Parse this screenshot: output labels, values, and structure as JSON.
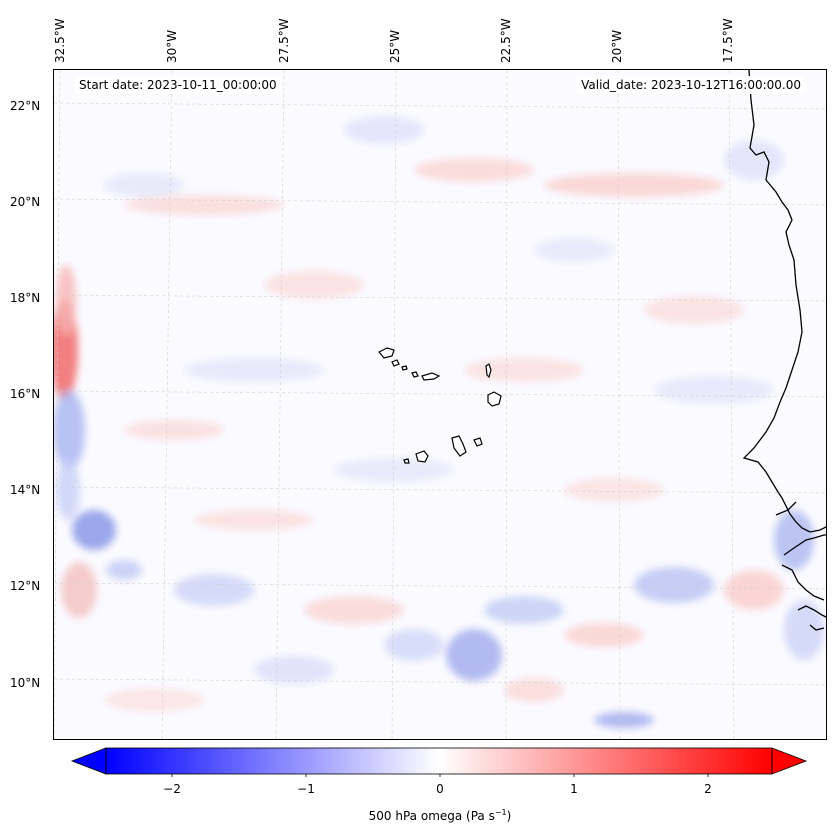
{
  "map": {
    "start_date": "Start date: 2023-10-11_00:00:00",
    "valid_date": "Valid_date: 2023-10-12T16:00:00.00",
    "lon_labels": [
      "32.5°W",
      "30°W",
      "27.5°W",
      "25°W",
      "22.5°W",
      "20°W",
      "17.5°W"
    ],
    "lat_labels": [
      "22°N",
      "20°N",
      "18°N",
      "16°N",
      "14°N",
      "12°N",
      "10°N"
    ],
    "field_name": "500 hPa omega",
    "colors": {
      "negative": "#0000ff",
      "zero": "#ffffff",
      "positive": "#ff0000",
      "coastline": "#000000",
      "grid": "#cccccc"
    }
  },
  "colorbar": {
    "ticks": [
      "−2",
      "−1",
      "0",
      "1",
      "2"
    ],
    "label_text": "500 hPa omega (Pa s",
    "label_exp": "−1",
    "label_close": ")",
    "range": [
      -2.75,
      2.75
    ]
  }
}
